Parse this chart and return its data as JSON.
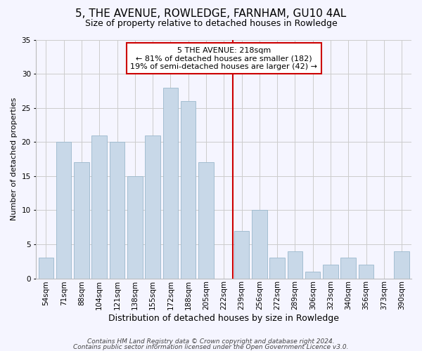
{
  "title": "5, THE AVENUE, ROWLEDGE, FARNHAM, GU10 4AL",
  "subtitle": "Size of property relative to detached houses in Rowledge",
  "xlabel": "Distribution of detached houses by size in Rowledge",
  "ylabel": "Number of detached properties",
  "bin_labels": [
    "54sqm",
    "71sqm",
    "88sqm",
    "104sqm",
    "121sqm",
    "138sqm",
    "155sqm",
    "172sqm",
    "188sqm",
    "205sqm",
    "222sqm",
    "239sqm",
    "256sqm",
    "272sqm",
    "289sqm",
    "306sqm",
    "323sqm",
    "340sqm",
    "356sqm",
    "373sqm",
    "390sqm"
  ],
  "bar_values": [
    3,
    20,
    17,
    21,
    20,
    15,
    21,
    28,
    26,
    17,
    0,
    7,
    10,
    3,
    4,
    1,
    2,
    3,
    2,
    0,
    4
  ],
  "bar_color": "#c8d8e8",
  "bar_edgecolor": "#9ab8cc",
  "vline_x": 10.5,
  "vline_color": "#cc0000",
  "annotation_line1": "5 THE AVENUE: 218sqm",
  "annotation_line2": "← 81% of detached houses are smaller (182)",
  "annotation_line3": "19% of semi-detached houses are larger (42) →",
  "box_edgecolor": "#cc0000",
  "ylim": [
    0,
    35
  ],
  "yticks": [
    0,
    5,
    10,
    15,
    20,
    25,
    30,
    35
  ],
  "grid_color": "#cccccc",
  "background_color": "#f5f5ff",
  "footnote1": "Contains HM Land Registry data © Crown copyright and database right 2024.",
  "footnote2": "Contains public sector information licensed under the Open Government Licence v3.0.",
  "title_fontsize": 11,
  "subtitle_fontsize": 9,
  "xlabel_fontsize": 9,
  "ylabel_fontsize": 8,
  "tick_fontsize": 7.5,
  "annotation_fontsize": 8,
  "footnote_fontsize": 6.5
}
